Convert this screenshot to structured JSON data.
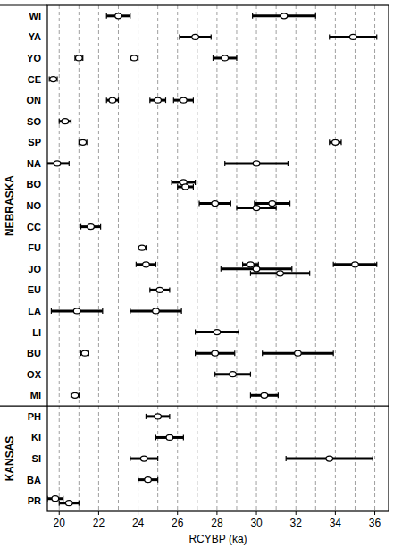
{
  "chart_data": {
    "type": "scatter",
    "x_label": "RCYBP (ka)",
    "xlim": [
      19.4,
      36.7
    ],
    "xticks": [
      20,
      22,
      24,
      26,
      28,
      30,
      32,
      34,
      36
    ],
    "minor_xticks": [
      21,
      23,
      25,
      27,
      29,
      31,
      33,
      35
    ],
    "grid": true,
    "marker": "circle",
    "color": "#000000",
    "groups": [
      {
        "name": "NEBRASKA",
        "categories": [
          "WI",
          "YA",
          "YO",
          "CE",
          "ON",
          "SO",
          "SP",
          "NA",
          "BO",
          "NO",
          "CC",
          "FU",
          "JO",
          "EU",
          "LA",
          "LI",
          "BU",
          "OX",
          "MI"
        ],
        "values": [
          [
            23.0,
            31.4
          ],
          [
            26.9,
            34.9
          ],
          [
            21.0,
            23.8,
            28.4
          ],
          [
            19.7
          ],
          [
            22.7,
            25.0,
            26.3
          ],
          [
            20.3
          ],
          [
            21.2,
            34.0
          ],
          [
            19.9,
            30.0
          ],
          [
            26.3,
            26.4
          ],
          [
            27.9,
            30.8,
            30.0
          ],
          [
            21.6
          ],
          [
            24.2
          ],
          [
            24.4,
            29.7,
            30.0,
            31.2,
            35.0
          ],
          [
            25.1
          ],
          [
            20.9,
            24.9
          ],
          [
            28.0
          ],
          [
            21.3,
            27.9,
            32.1
          ],
          [
            28.8
          ],
          [
            20.8,
            30.4
          ]
        ],
        "errors": [
          [
            0.6,
            1.6
          ],
          [
            0.8,
            1.2
          ],
          [
            0.2,
            0.2,
            0.6
          ],
          [
            0.2
          ],
          [
            0.3,
            0.4,
            0.5
          ],
          [
            0.3
          ],
          [
            0.2,
            0.3
          ],
          [
            0.6,
            1.6
          ],
          [
            0.6,
            0.4
          ],
          [
            0.8,
            0.9,
            1.0
          ],
          [
            0.5
          ],
          [
            0.2
          ],
          [
            0.5,
            0.4,
            1.8,
            1.5,
            1.1
          ],
          [
            0.5
          ],
          [
            1.3,
            1.3
          ],
          [
            1.1
          ],
          [
            0.2,
            1.0,
            1.8
          ],
          [
            0.9
          ],
          [
            0.2,
            0.7
          ]
        ]
      },
      {
        "name": "KANSAS",
        "categories": [
          "PH",
          "KI",
          "SI",
          "BA",
          "PR"
        ],
        "values": [
          [
            25.0
          ],
          [
            25.6
          ],
          [
            24.3,
            33.7
          ],
          [
            24.5
          ],
          [
            19.8,
            20.5
          ]
        ],
        "errors": [
          [
            0.6
          ],
          [
            0.7
          ],
          [
            0.7,
            2.2
          ],
          [
            0.5
          ],
          [
            0.4,
            0.5
          ]
        ]
      }
    ]
  }
}
